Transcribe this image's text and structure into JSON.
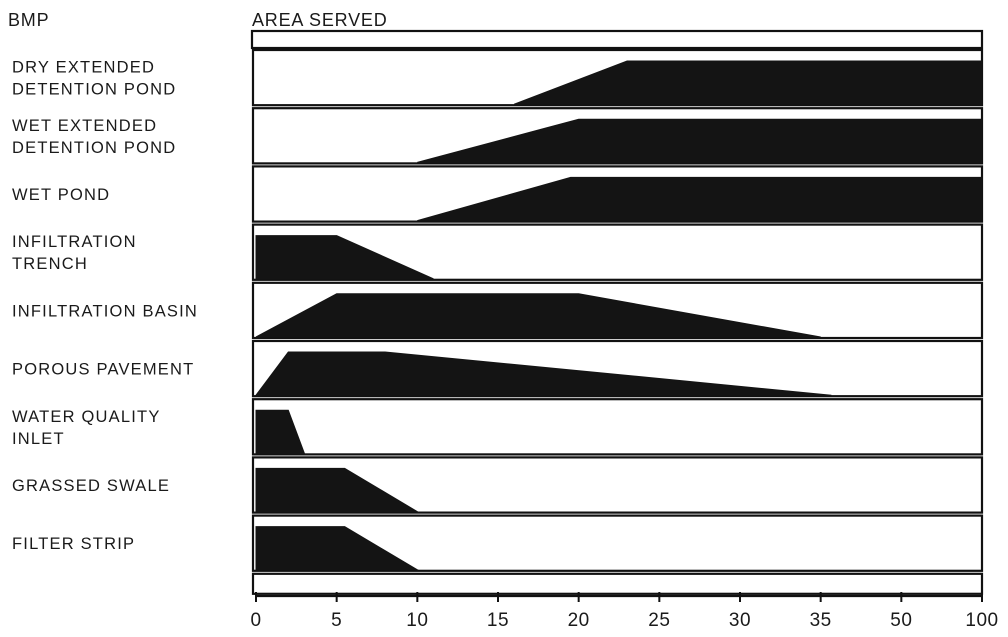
{
  "chart_data": {
    "type": "area",
    "column_header": "BMP",
    "title": "AREA SERVED",
    "x_ticks": [
      0,
      5,
      10,
      15,
      20,
      25,
      30,
      35,
      50,
      100
    ],
    "rows": [
      {
        "label": [
          "DRY EXTENDED",
          "DETENTION POND"
        ],
        "profile": [
          [
            16,
            0
          ],
          [
            23,
            1
          ],
          [
            100,
            1
          ]
        ]
      },
      {
        "label": [
          "WET EXTENDED",
          "DETENTION POND"
        ],
        "profile": [
          [
            10,
            0
          ],
          [
            20,
            1
          ],
          [
            100,
            1
          ]
        ]
      },
      {
        "label": [
          "WET POND"
        ],
        "profile": [
          [
            10,
            0
          ],
          [
            19.5,
            1
          ],
          [
            100,
            1
          ]
        ]
      },
      {
        "label": [
          "INFILTRATION",
          "TRENCH"
        ],
        "profile": [
          [
            0,
            1
          ],
          [
            5,
            1
          ],
          [
            11,
            0
          ]
        ]
      },
      {
        "label": [
          "INFILTRATION BASIN"
        ],
        "profile": [
          [
            0,
            0
          ],
          [
            5,
            1
          ],
          [
            20,
            1
          ],
          [
            35,
            0
          ]
        ]
      },
      {
        "label": [
          "POROUS PAVEMENT"
        ],
        "profile": [
          [
            0,
            0
          ],
          [
            2,
            1
          ],
          [
            8,
            1
          ],
          [
            37,
            0
          ]
        ]
      },
      {
        "label": [
          "WATER QUALITY",
          "INLET"
        ],
        "profile": [
          [
            0,
            1
          ],
          [
            2,
            1
          ],
          [
            3,
            0
          ]
        ]
      },
      {
        "label": [
          "GRASSED SWALE"
        ],
        "profile": [
          [
            0,
            1
          ],
          [
            5.5,
            1
          ],
          [
            10,
            0
          ]
        ]
      },
      {
        "label": [
          "FILTER STRIP"
        ],
        "profile": [
          [
            0,
            1
          ],
          [
            5.5,
            1
          ],
          [
            10,
            0
          ]
        ]
      }
    ]
  }
}
